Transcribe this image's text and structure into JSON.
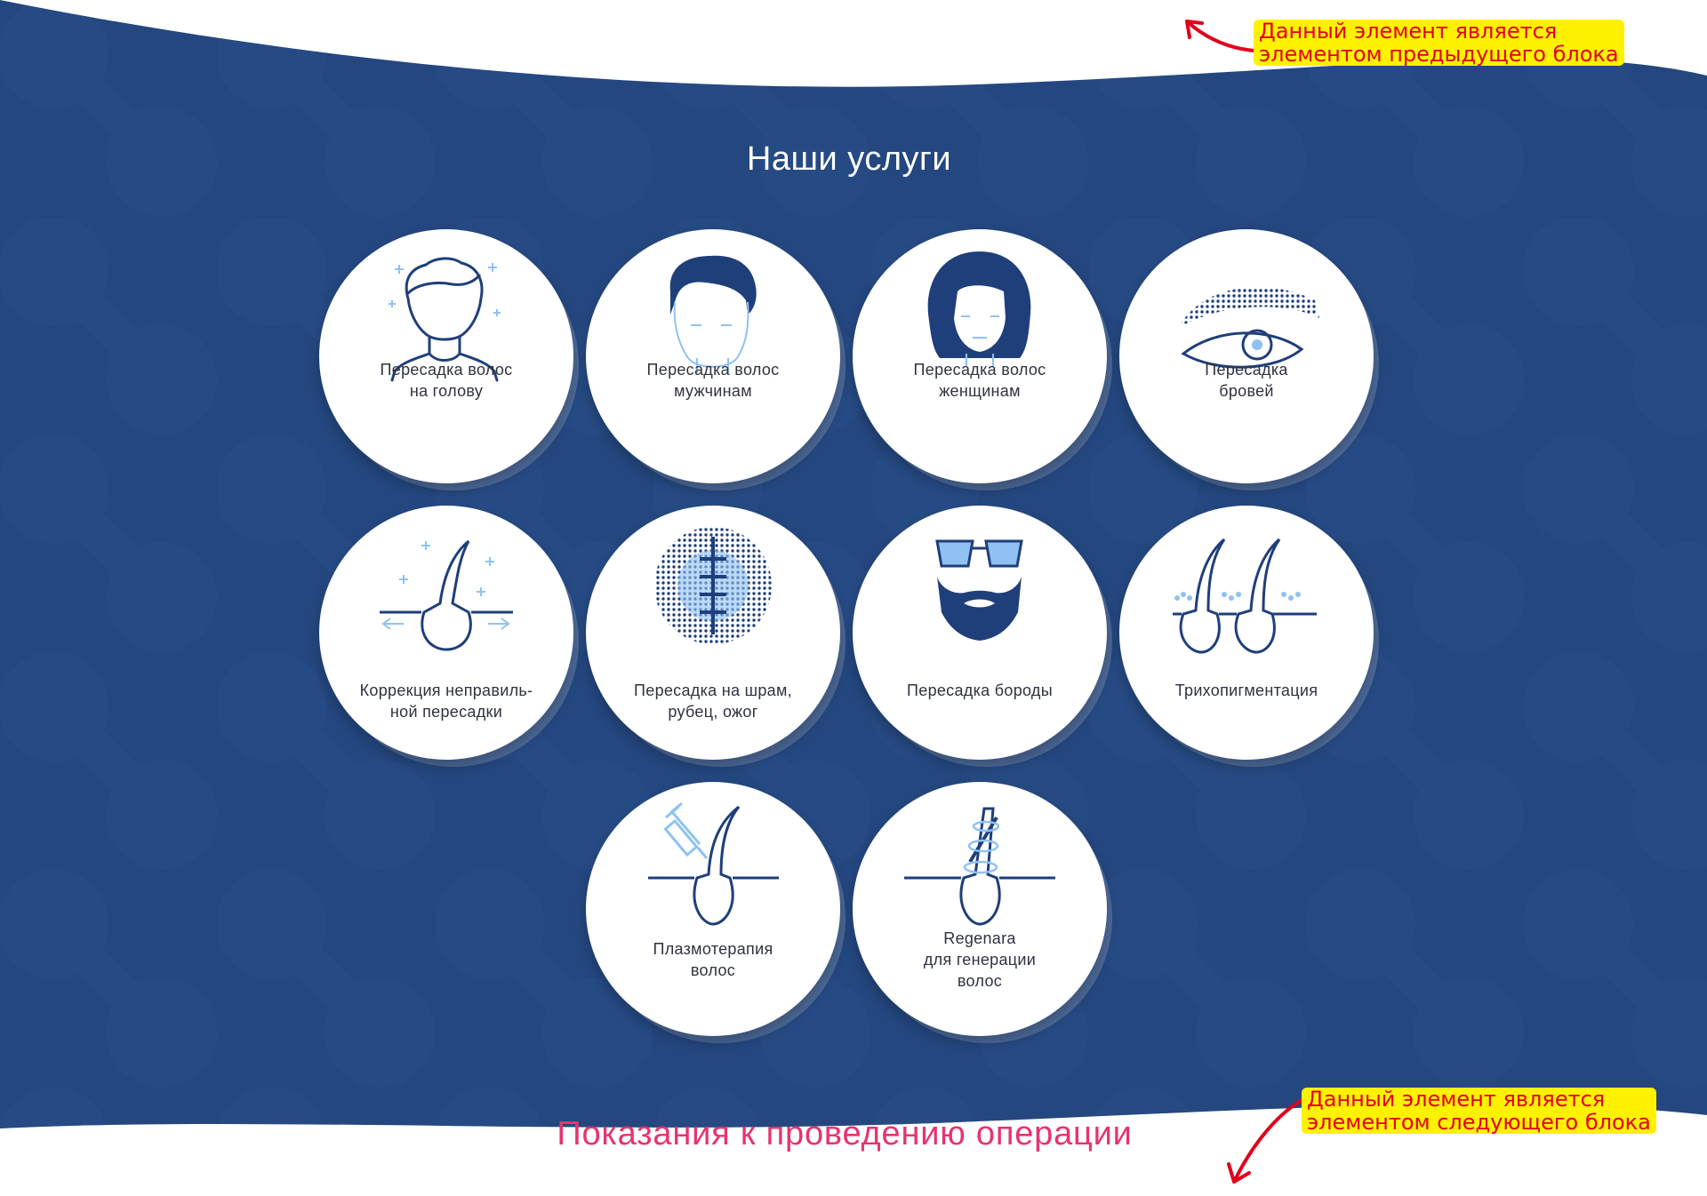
{
  "section": {
    "title": "Наши услуги",
    "background": "#24477f",
    "accent_light": "#8fc2f2",
    "icon_dark": "#1f3f7a"
  },
  "services": [
    {
      "label": "Пересадка волос\nна голову",
      "icon": "head-outline-icon"
    },
    {
      "label": "Пересадка волос\nмужчинам",
      "icon": "man-face-icon"
    },
    {
      "label": "Пересадка волос\nженщинам",
      "icon": "woman-face-icon"
    },
    {
      "label": "Пересадка\nбровей",
      "icon": "eyebrow-eye-icon"
    },
    {
      "label": "Коррекция неправиль-\nной пересадки",
      "icon": "hair-follicle-correction-icon"
    },
    {
      "label": "Пересадка на шрам,\nрубец, ожог",
      "icon": "scar-dotted-icon"
    },
    {
      "label": "Пересадка бороды",
      "icon": "beard-face-icon"
    },
    {
      "label": "Трихопигментация",
      "icon": "trichopigmentation-icon"
    },
    {
      "label": "Плазмотерапия\nволос",
      "icon": "syringe-follicle-icon"
    },
    {
      "label": "Regenara\nдля генерации\nволос",
      "icon": "regeneration-follicle-icon"
    }
  ],
  "annotations": {
    "top_note": "Данный элемент является\nэлементом предыдущего блока",
    "bottom_note": "Данный элемент является\nэлементом следующего блока",
    "highlight_color": "#fff200",
    "text_color": "#e3001b"
  },
  "next_block": {
    "title": "Показания к проведению операции",
    "color": "#e8336e"
  }
}
